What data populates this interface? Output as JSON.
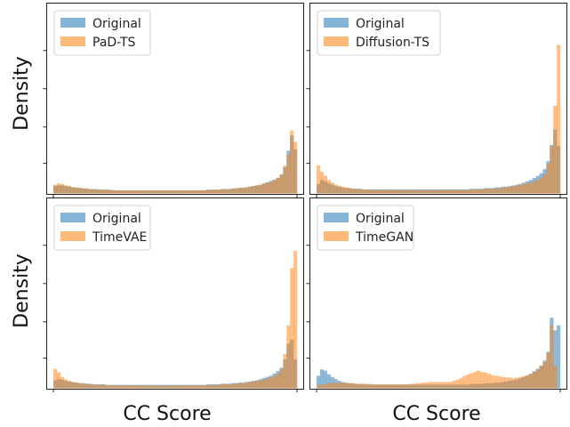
{
  "figure": {
    "ylabel": "Density",
    "xlabel": "CC Score",
    "colors": {
      "original": "#1f77b4",
      "model": "#ff7f0e",
      "overlap": "#9a7b5a"
    },
    "alpha": 0.5
  },
  "chart_data": [
    {
      "type": "histogram",
      "panel": "top-left",
      "legend": [
        "Original",
        "PaD-TS"
      ],
      "legend_position": "top-left",
      "series": [
        {
          "name": "Original",
          "values": [
            0.12,
            0.13,
            0.13,
            0.12,
            0.11,
            0.1,
            0.09,
            0.09,
            0.08,
            0.08,
            0.07,
            0.07,
            0.07,
            0.06,
            0.06,
            0.06,
            0.06,
            0.05,
            0.05,
            0.05,
            0.05,
            0.05,
            0.05,
            0.05,
            0.05,
            0.05,
            0.05,
            0.05,
            0.05,
            0.05,
            0.05,
            0.05,
            0.05,
            0.05,
            0.05,
            0.05,
            0.05,
            0.05,
            0.05,
            0.05,
            0.05,
            0.05,
            0.05,
            0.05,
            0.06,
            0.06,
            0.06,
            0.06,
            0.07,
            0.07,
            0.07,
            0.08,
            0.08,
            0.09,
            0.09,
            0.1,
            0.11,
            0.12,
            0.13,
            0.14,
            0.16,
            0.18,
            0.2,
            0.22,
            0.25,
            0.3,
            0.42,
            0.68,
            0.92,
            0.7
          ]
        },
        {
          "name": "PaD-TS",
          "values": [
            0.14,
            0.16,
            0.15,
            0.13,
            0.12,
            0.1,
            0.1,
            0.09,
            0.08,
            0.08,
            0.07,
            0.07,
            0.06,
            0.06,
            0.06,
            0.06,
            0.05,
            0.05,
            0.05,
            0.05,
            0.05,
            0.05,
            0.05,
            0.05,
            0.05,
            0.05,
            0.05,
            0.05,
            0.05,
            0.05,
            0.05,
            0.05,
            0.05,
            0.05,
            0.05,
            0.05,
            0.05,
            0.05,
            0.05,
            0.05,
            0.05,
            0.05,
            0.05,
            0.05,
            0.06,
            0.06,
            0.06,
            0.06,
            0.07,
            0.07,
            0.07,
            0.08,
            0.08,
            0.09,
            0.09,
            0.1,
            0.11,
            0.12,
            0.13,
            0.14,
            0.16,
            0.17,
            0.19,
            0.22,
            0.25,
            0.3,
            0.44,
            0.62,
            1.0,
            0.82
          ]
        }
      ],
      "ylim": [
        0,
        3.0
      ]
    },
    {
      "type": "histogram",
      "panel": "top-right",
      "legend": [
        "Original",
        "Diffusion-TS"
      ],
      "legend_position": "top-left",
      "series": [
        {
          "name": "Original",
          "values": [
            0.14,
            0.2,
            0.18,
            0.15,
            0.13,
            0.11,
            0.1,
            0.09,
            0.08,
            0.08,
            0.07,
            0.07,
            0.07,
            0.06,
            0.06,
            0.06,
            0.06,
            0.06,
            0.06,
            0.06,
            0.06,
            0.06,
            0.06,
            0.06,
            0.06,
            0.06,
            0.06,
            0.06,
            0.06,
            0.06,
            0.06,
            0.06,
            0.06,
            0.06,
            0.06,
            0.06,
            0.06,
            0.06,
            0.06,
            0.06,
            0.06,
            0.06,
            0.06,
            0.06,
            0.07,
            0.07,
            0.07,
            0.07,
            0.08,
            0.08,
            0.08,
            0.09,
            0.09,
            0.1,
            0.1,
            0.11,
            0.12,
            0.13,
            0.14,
            0.16,
            0.18,
            0.2,
            0.23,
            0.26,
            0.3,
            0.36,
            0.48,
            0.72,
            0.95,
            0.7
          ]
        },
        {
          "name": "Diffusion-TS",
          "values": [
            0.42,
            0.32,
            0.26,
            0.2,
            0.16,
            0.13,
            0.11,
            0.1,
            0.09,
            0.08,
            0.07,
            0.07,
            0.06,
            0.06,
            0.06,
            0.05,
            0.05,
            0.05,
            0.05,
            0.05,
            0.05,
            0.05,
            0.05,
            0.05,
            0.05,
            0.05,
            0.05,
            0.05,
            0.05,
            0.05,
            0.05,
            0.05,
            0.05,
            0.05,
            0.05,
            0.05,
            0.05,
            0.05,
            0.05,
            0.05,
            0.05,
            0.05,
            0.05,
            0.05,
            0.06,
            0.06,
            0.06,
            0.06,
            0.07,
            0.07,
            0.07,
            0.08,
            0.08,
            0.09,
            0.09,
            0.1,
            0.11,
            0.12,
            0.13,
            0.14,
            0.15,
            0.16,
            0.18,
            0.2,
            0.23,
            0.28,
            0.44,
            0.7,
            1.3,
            2.2
          ]
        }
      ],
      "ylim": [
        0,
        2.8
      ]
    },
    {
      "type": "histogram",
      "panel": "bottom-left",
      "legend": [
        "Original",
        "TimeVAE"
      ],
      "legend_position": "top-left",
      "series": [
        {
          "name": "Original",
          "values": [
            0.14,
            0.16,
            0.15,
            0.13,
            0.12,
            0.11,
            0.1,
            0.09,
            0.09,
            0.08,
            0.08,
            0.07,
            0.07,
            0.07,
            0.07,
            0.06,
            0.06,
            0.06,
            0.06,
            0.06,
            0.06,
            0.06,
            0.06,
            0.06,
            0.06,
            0.06,
            0.06,
            0.06,
            0.06,
            0.06,
            0.06,
            0.06,
            0.06,
            0.06,
            0.06,
            0.06,
            0.06,
            0.06,
            0.06,
            0.06,
            0.06,
            0.06,
            0.06,
            0.06,
            0.07,
            0.07,
            0.07,
            0.07,
            0.08,
            0.08,
            0.08,
            0.09,
            0.09,
            0.1,
            0.1,
            0.11,
            0.12,
            0.13,
            0.14,
            0.16,
            0.18,
            0.2,
            0.22,
            0.26,
            0.3,
            0.36,
            0.5,
            0.78,
            0.85,
            0.5
          ]
        },
        {
          "name": "TimeVAE",
          "values": [
            0.34,
            0.28,
            0.2,
            0.16,
            0.13,
            0.11,
            0.1,
            0.09,
            0.08,
            0.08,
            0.07,
            0.07,
            0.06,
            0.06,
            0.06,
            0.06,
            0.05,
            0.05,
            0.05,
            0.05,
            0.05,
            0.05,
            0.05,
            0.05,
            0.05,
            0.05,
            0.05,
            0.05,
            0.05,
            0.05,
            0.05,
            0.05,
            0.05,
            0.05,
            0.05,
            0.05,
            0.05,
            0.05,
            0.05,
            0.05,
            0.05,
            0.05,
            0.05,
            0.05,
            0.06,
            0.06,
            0.06,
            0.06,
            0.07,
            0.07,
            0.07,
            0.08,
            0.08,
            0.09,
            0.09,
            0.1,
            0.11,
            0.12,
            0.13,
            0.14,
            0.15,
            0.17,
            0.19,
            0.22,
            0.26,
            0.34,
            0.6,
            1.1,
            2.1,
            2.4
          ]
        }
      ],
      "ylim": [
        0,
        3.3
      ]
    },
    {
      "type": "histogram",
      "panel": "bottom-right",
      "legend": [
        "Original",
        "TimeGAN"
      ],
      "legend_position": "top-left",
      "series": [
        {
          "name": "Original",
          "values": [
            0.2,
            0.3,
            0.28,
            0.22,
            0.18,
            0.15,
            0.12,
            0.1,
            0.09,
            0.08,
            0.08,
            0.07,
            0.07,
            0.07,
            0.06,
            0.06,
            0.06,
            0.06,
            0.06,
            0.06,
            0.06,
            0.06,
            0.06,
            0.06,
            0.06,
            0.06,
            0.06,
            0.06,
            0.06,
            0.06,
            0.06,
            0.06,
            0.06,
            0.06,
            0.06,
            0.06,
            0.06,
            0.06,
            0.06,
            0.06,
            0.06,
            0.06,
            0.06,
            0.06,
            0.07,
            0.07,
            0.07,
            0.07,
            0.08,
            0.08,
            0.08,
            0.09,
            0.09,
            0.1,
            0.11,
            0.12,
            0.13,
            0.14,
            0.16,
            0.18,
            0.2,
            0.23,
            0.27,
            0.31,
            0.36,
            0.44,
            0.58,
            1.12,
            0.92,
            1.0
          ]
        },
        {
          "name": "TimeGAN",
          "values": [
            0.05,
            0.06,
            0.07,
            0.08,
            0.08,
            0.09,
            0.09,
            0.09,
            0.08,
            0.08,
            0.08,
            0.07,
            0.07,
            0.07,
            0.07,
            0.07,
            0.06,
            0.06,
            0.06,
            0.06,
            0.06,
            0.06,
            0.06,
            0.06,
            0.06,
            0.06,
            0.07,
            0.07,
            0.08,
            0.08,
            0.09,
            0.09,
            0.1,
            0.1,
            0.1,
            0.1,
            0.1,
            0.1,
            0.1,
            0.12,
            0.14,
            0.16,
            0.2,
            0.22,
            0.24,
            0.26,
            0.28,
            0.26,
            0.25,
            0.23,
            0.21,
            0.2,
            0.19,
            0.18,
            0.17,
            0.17,
            0.16,
            0.17,
            0.18,
            0.19,
            0.21,
            0.23,
            0.26,
            0.3,
            0.36,
            0.42,
            0.56,
            1.0,
            0.36,
            0.0
          ]
        }
      ],
      "ylim": [
        0,
        3.0
      ]
    }
  ]
}
